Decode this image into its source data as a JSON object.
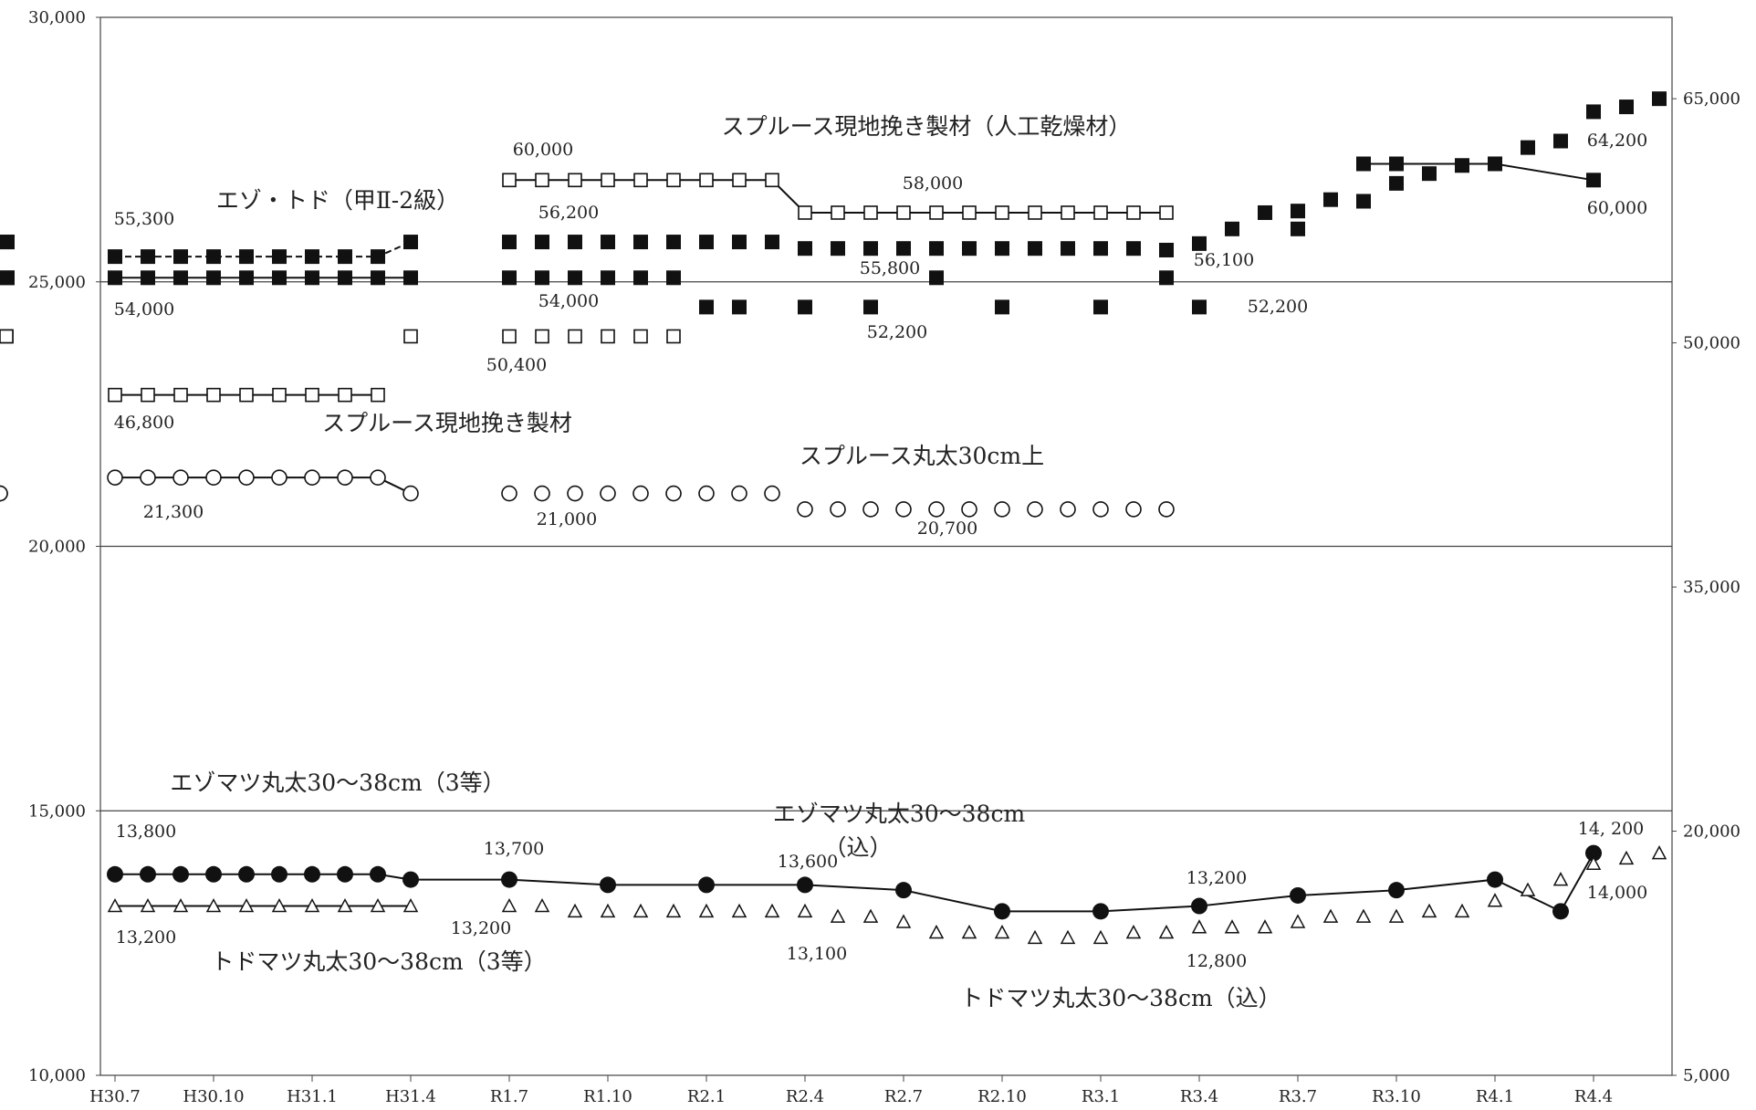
{
  "chart_data": {
    "type": "line",
    "title": "",
    "xlabel": "",
    "ylabel": "",
    "ylim": [
      10000,
      30000
    ],
    "y2lim": [
      5000,
      70000
    ],
    "grid": "horizontal",
    "x_ticks": [
      "H30.7",
      "H30.10",
      "H31.1",
      "H31.4",
      "R1.7",
      "R1.10",
      "R2.1",
      "R2.4",
      "R2.7",
      "R2.10",
      "R3.1",
      "R3.4",
      "R3.7",
      "R3.10",
      "R4.1",
      "R4.4"
    ],
    "y_ticks": [
      "10,000",
      "15,000",
      "20,000",
      "25,000",
      "30,000"
    ],
    "y2_ticks": [
      "5,000",
      "20,000",
      "35,000",
      "50,000",
      "65,000"
    ],
    "series": [
      {
        "name": "エゾ・トド（甲Ⅱ-2級）",
        "axis": "right",
        "line": "dashed",
        "marker": "filled-square",
        "points": [
          [
            "H30.7",
            55300
          ],
          [
            "H30.8",
            55300
          ],
          [
            "H30.9",
            55300
          ],
          [
            "H30.10",
            55300
          ],
          [
            "H30.11",
            55300
          ],
          [
            "H30.12",
            55300
          ],
          [
            "H31.1",
            55300
          ],
          [
            "H31.2",
            55300
          ],
          [
            "H31.3",
            55300
          ],
          [
            "H31.4",
            56200
          ],
          [
            "H31.5",
            56200
          ],
          [
            "H31.6",
            56200
          ],
          [
            "R1.7",
            56200
          ],
          [
            "R1.8",
            56200
          ],
          [
            "R1.9",
            56200
          ],
          [
            "R1.10",
            56200
          ],
          [
            "R1.11",
            56200
          ],
          [
            "R1.12",
            56200
          ],
          [
            "R2.1",
            56200
          ],
          [
            "R2.2",
            56200
          ],
          [
            "R2.3",
            56200
          ],
          [
            "R2.4",
            55800
          ],
          [
            "R2.5",
            55800
          ],
          [
            "R2.6",
            55800
          ],
          [
            "R2.7",
            55800
          ],
          [
            "R2.8",
            55800
          ],
          [
            "R2.9",
            55800
          ],
          [
            "R2.10",
            55800
          ],
          [
            "R2.11",
            55800
          ],
          [
            "R2.12",
            55800
          ],
          [
            "R3.1",
            55800
          ],
          [
            "R3.2",
            55800
          ],
          [
            "R3.3",
            55700
          ],
          [
            "R3.4",
            56100
          ],
          [
            "R3.5",
            57000
          ],
          [
            "R3.6",
            58000
          ],
          [
            "R3.7",
            58100
          ],
          [
            "R3.8",
            58800
          ],
          [
            "R3.9",
            58700
          ],
          [
            "R3.10",
            59800
          ],
          [
            "R3.11",
            60400
          ],
          [
            "R3.12",
            60900
          ],
          [
            "R4.1",
            61000
          ],
          [
            "R4.2",
            62000
          ],
          [
            "R4.3",
            62400
          ],
          [
            "R4.4",
            64200
          ],
          [
            "R4.5",
            64500
          ],
          [
            "R4.6",
            65000
          ]
        ]
      },
      {
        "name": "スプルース現地挽き製材（人工乾燥材）",
        "axis": "right",
        "line": "solid",
        "marker": "filled-square",
        "points": [
          [
            "H30.7",
            54000
          ],
          [
            "H30.8",
            54000
          ],
          [
            "H30.9",
            54000
          ],
          [
            "H30.10",
            54000
          ],
          [
            "H30.11",
            54000
          ],
          [
            "H30.12",
            54000
          ],
          [
            "H31.1",
            54000
          ],
          [
            "H31.2",
            54000
          ],
          [
            "H31.3",
            54000
          ],
          [
            "H31.4",
            54000
          ],
          [
            "H31.5",
            54000
          ],
          [
            "H31.6",
            54000
          ],
          [
            "R1.7",
            54000
          ],
          [
            "R1.8",
            54000
          ],
          [
            "R1.9",
            54000
          ],
          [
            "R1.10",
            54000
          ],
          [
            "R1.11",
            54000
          ],
          [
            "R1.12",
            54000
          ],
          [
            "R2.1",
            52200
          ],
          [
            "R2.2",
            52200
          ],
          [
            "R2.4",
            52200
          ],
          [
            "R2.6",
            52200
          ],
          [
            "R2.8",
            54000
          ],
          [
            "R2.10",
            52200
          ],
          [
            "R3.1",
            52200
          ],
          [
            "R3.3",
            54000
          ],
          [
            "R3.4",
            52200
          ],
          [
            "R3.7",
            57000
          ],
          [
            "R3.9",
            61000
          ],
          [
            "R3.10",
            61000
          ],
          [
            "R4.1",
            61000
          ],
          [
            "R4.4",
            60000
          ]
        ]
      },
      {
        "name": "スプルース現地挽き製材",
        "axis": "right",
        "line": "solid",
        "marker": "open-square",
        "points": [
          [
            "H30.7",
            46800
          ],
          [
            "H30.8",
            46800
          ],
          [
            "H30.9",
            46800
          ],
          [
            "H30.10",
            46800
          ],
          [
            "H30.11",
            46800
          ],
          [
            "H30.12",
            46800
          ],
          [
            "H31.1",
            46800
          ],
          [
            "H31.2",
            46800
          ],
          [
            "H31.3",
            46800
          ],
          [
            "H31.4",
            50400
          ],
          [
            "H31.5",
            50400
          ],
          [
            "H31.6",
            50400
          ],
          [
            "R1.7",
            50400
          ],
          [
            "R1.8",
            50400
          ],
          [
            "R1.9",
            50400
          ],
          [
            "R1.10",
            50400
          ],
          [
            "R1.11",
            50400
          ],
          [
            "R1.12",
            50400
          ],
          [
            "R1.7",
            60000
          ],
          [
            "R1.8",
            60000
          ],
          [
            "R1.9",
            60000
          ],
          [
            "R1.10",
            60000
          ],
          [
            "R1.11",
            60000
          ],
          [
            "R1.12",
            60000
          ],
          [
            "R2.1",
            60000
          ],
          [
            "R2.2",
            60000
          ],
          [
            "R2.3",
            60000
          ],
          [
            "R2.4",
            58000
          ],
          [
            "R2.5",
            58000
          ],
          [
            "R2.6",
            58000
          ],
          [
            "R2.7",
            58000
          ],
          [
            "R2.8",
            58000
          ],
          [
            "R2.9",
            58000
          ],
          [
            "R2.10",
            58000
          ],
          [
            "R2.11",
            58000
          ],
          [
            "R2.12",
            58000
          ],
          [
            "R3.1",
            58000
          ],
          [
            "R3.2",
            58000
          ],
          [
            "R3.3",
            58000
          ]
        ]
      },
      {
        "name": "スプルース丸太30cm上",
        "axis": "left",
        "line": "solid",
        "marker": "open-circle",
        "points": [
          [
            "H30.7",
            21300
          ],
          [
            "H30.8",
            21300
          ],
          [
            "H30.9",
            21300
          ],
          [
            "H30.10",
            21300
          ],
          [
            "H30.11",
            21300
          ],
          [
            "H30.12",
            21300
          ],
          [
            "H31.1",
            21300
          ],
          [
            "H31.2",
            21300
          ],
          [
            "H31.3",
            21300
          ],
          [
            "H31.4",
            21000
          ],
          [
            "H31.5",
            21000
          ],
          [
            "H31.6",
            21000
          ],
          [
            "R1.7",
            21000
          ],
          [
            "R1.8",
            21000
          ],
          [
            "R1.9",
            21000
          ],
          [
            "R1.10",
            21000
          ],
          [
            "R1.11",
            21000
          ],
          [
            "R1.12",
            21000
          ],
          [
            "R2.1",
            21000
          ],
          [
            "R2.2",
            21000
          ],
          [
            "R2.3",
            21000
          ],
          [
            "R2.4",
            20700
          ],
          [
            "R2.5",
            20700
          ],
          [
            "R2.6",
            20700
          ],
          [
            "R2.7",
            20700
          ],
          [
            "R2.8",
            20700
          ],
          [
            "R2.9",
            20700
          ],
          [
            "R2.10",
            20700
          ],
          [
            "R2.11",
            20700
          ],
          [
            "R2.12",
            20700
          ],
          [
            "R3.1",
            20700
          ],
          [
            "R3.2",
            20700
          ],
          [
            "R3.3",
            20700
          ]
        ]
      },
      {
        "name": "エゾマツ丸太30～38cm（3等）→（込）",
        "axis": "left",
        "line": "solid",
        "marker": "filled-circle",
        "points": [
          [
            "H30.7",
            13800
          ],
          [
            "H30.8",
            13800
          ],
          [
            "H30.9",
            13800
          ],
          [
            "H30.10",
            13800
          ],
          [
            "H30.11",
            13800
          ],
          [
            "H30.12",
            13800
          ],
          [
            "H31.1",
            13800
          ],
          [
            "H31.2",
            13800
          ],
          [
            "H31.3",
            13800
          ],
          [
            "H31.4",
            13700
          ],
          [
            "R1.7",
            13700
          ],
          [
            "R1.10",
            13600
          ],
          [
            "R2.1",
            13600
          ],
          [
            "R2.4",
            13600
          ],
          [
            "R2.7",
            13500
          ],
          [
            "R2.10",
            13100
          ],
          [
            "R3.1",
            13100
          ],
          [
            "R3.4",
            13200
          ],
          [
            "R3.7",
            13400
          ],
          [
            "R3.10",
            13500
          ],
          [
            "R4.1",
            13700
          ],
          [
            "R4.3",
            13100
          ],
          [
            "R4.4",
            14200
          ]
        ]
      },
      {
        "name": "トドマツ丸太30～38cm（3等）→（込）",
        "axis": "left",
        "line": "solid",
        "marker": "open-triangle",
        "points": [
          [
            "H30.7",
            13200
          ],
          [
            "H30.8",
            13200
          ],
          [
            "H30.9",
            13200
          ],
          [
            "H30.10",
            13200
          ],
          [
            "H30.11",
            13200
          ],
          [
            "H30.12",
            13200
          ],
          [
            "H31.1",
            13200
          ],
          [
            "H31.2",
            13200
          ],
          [
            "H31.3",
            13200
          ],
          [
            "H31.4",
            13200
          ],
          [
            "H31.5",
            13200
          ],
          [
            "H31.6",
            13200
          ],
          [
            "R1.7",
            13200
          ],
          [
            "R1.8",
            13200
          ],
          [
            "R1.9",
            13100
          ],
          [
            "R1.10",
            13100
          ],
          [
            "R1.11",
            13100
          ],
          [
            "R1.12",
            13100
          ],
          [
            "R2.1",
            13100
          ],
          [
            "R2.2",
            13100
          ],
          [
            "R2.3",
            13100
          ],
          [
            "R2.4",
            13100
          ],
          [
            "R2.5",
            13000
          ],
          [
            "R2.6",
            13000
          ],
          [
            "R2.7",
            12900
          ],
          [
            "R2.8",
            12700
          ],
          [
            "R2.9",
            12700
          ],
          [
            "R2.10",
            12700
          ],
          [
            "R2.11",
            12600
          ],
          [
            "R2.12",
            12600
          ],
          [
            "R3.1",
            12600
          ],
          [
            "R3.2",
            12700
          ],
          [
            "R3.3",
            12700
          ],
          [
            "R3.4",
            12800
          ],
          [
            "R3.5",
            12800
          ],
          [
            "R3.6",
            12800
          ],
          [
            "R3.7",
            12900
          ],
          [
            "R3.8",
            13000
          ],
          [
            "R3.9",
            13000
          ],
          [
            "R3.10",
            13000
          ],
          [
            "R3.11",
            13100
          ],
          [
            "R3.12",
            13100
          ],
          [
            "R4.1",
            13300
          ],
          [
            "R4.2",
            13500
          ],
          [
            "R4.3",
            13700
          ],
          [
            "R4.4",
            14000
          ],
          [
            "R4.5",
            14100
          ],
          [
            "R4.6",
            14200
          ]
        ]
      }
    ],
    "annotations": [
      "スプルース現地挽き製材（人工乾燥材）",
      "エゾ・トド（甲Ⅱ-2級）",
      "スプルース現地挽き製材",
      "スプルース丸太30cm上",
      "エゾマツ丸太30～38cm（3等）",
      "エゾマツ丸太30～38cm",
      "（込）",
      "トドマツ丸太30～38cm（3等）",
      "トドマツ丸太30～38cm（込）"
    ],
    "data_labels": [
      "55,300",
      "54,000",
      "46,800",
      "21,300",
      "60,000",
      "56,200",
      "54,000",
      "50,400",
      "21,000",
      "58,000",
      "55,800",
      "52,200",
      "20,700",
      "56,100",
      "52,200",
      "64,200",
      "60,000",
      "13,800",
      "13,200",
      "13,700",
      "13,200",
      "13,600",
      "13,100",
      "13,200",
      "12,800",
      "14, 200",
      "14,000"
    ]
  }
}
